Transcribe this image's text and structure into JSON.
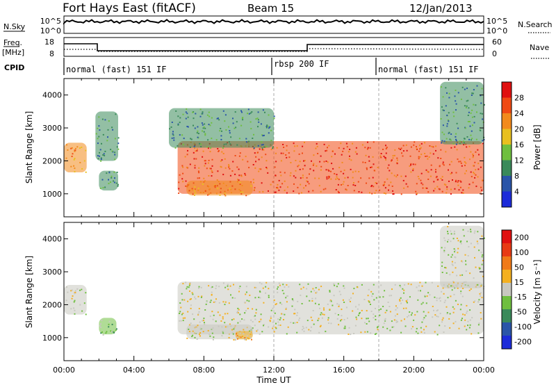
{
  "header": {
    "station": "Fort Hays East (fitACF)",
    "beam": "Beam 15",
    "date": "12/Jan/2013"
  },
  "strip_labels": {
    "nsky": "N.Sky",
    "nsky_ticks": [
      "10^5",
      "10^0"
    ],
    "nsearch": "N.Search",
    "nsearch_ticks": [
      "10^5",
      "10^0"
    ],
    "freq": "Freq.",
    "freq_unit": "[MHz]",
    "freq_ticks": [
      "18",
      "8"
    ],
    "nave": "Nave",
    "nave_ticks": [
      "60",
      "0"
    ],
    "cpid": "CPID",
    "cpid_modes": [
      {
        "label": "normal (fast) 151 IF",
        "start": 0
      },
      {
        "label": "rbsp 200 IF",
        "start": 12
      },
      {
        "label": "normal (fast) 151 IF",
        "start": 18
      }
    ]
  },
  "chart_data": [
    {
      "type": "heatmap",
      "name": "power",
      "xlabel": "",
      "ylabel": "Slant Range [km]",
      "xlim": [
        0,
        24
      ],
      "ylim": [
        300,
        4500
      ],
      "yticks": [
        1000,
        2000,
        3000,
        4000
      ],
      "ytick_labels": [
        "1000",
        "2000",
        "3000",
        "4000"
      ],
      "colorbar": {
        "label": "Power [dB]",
        "levels": [
          "4",
          "8",
          "12",
          "16",
          "20",
          "24",
          "28"
        ],
        "colors": [
          "#1c2bd9",
          "#2a55a8",
          "#3a8a5a",
          "#6fbf3f",
          "#e8c020",
          "#f28a1c",
          "#f04a14",
          "#e01010"
        ]
      },
      "regions": [
        {
          "desc": "early band",
          "x": [
            0.0,
            1.3
          ],
          "y": [
            1650,
            2550
          ],
          "level": 5
        },
        {
          "desc": "patch",
          "x": [
            1.8,
            3.1
          ],
          "y": [
            2000,
            3500
          ],
          "level": 2
        },
        {
          "desc": "small patch",
          "x": [
            2.0,
            3.1
          ],
          "y": [
            1100,
            1700
          ],
          "level": 2
        },
        {
          "desc": "main band",
          "x": [
            6.5,
            24.0
          ],
          "y": [
            1000,
            2600
          ],
          "level": 6
        },
        {
          "desc": "lower band",
          "x": [
            7.0,
            10.8
          ],
          "y": [
            950,
            1400
          ],
          "level": 5
        },
        {
          "desc": "upper diffuse",
          "x": [
            6.0,
            12.0
          ],
          "y": [
            2400,
            3600
          ],
          "level": 2
        },
        {
          "desc": "high range",
          "x": [
            21.5,
            24.0
          ],
          "y": [
            2500,
            4400
          ],
          "level": 2
        }
      ]
    },
    {
      "type": "heatmap",
      "name": "velocity",
      "xlabel": "Time UT",
      "ylabel": "Slant Range [km]",
      "xlim": [
        0,
        24
      ],
      "ylim": [
        300,
        4500
      ],
      "xticks": [
        0,
        4,
        8,
        12,
        16,
        20,
        24
      ],
      "xtick_labels": [
        "00:00",
        "04:00",
        "08:00",
        "12:00",
        "16:00",
        "20:00",
        "00:00"
      ],
      "yticks": [
        1000,
        2000,
        3000,
        4000
      ],
      "ytick_labels": [
        "1000",
        "2000",
        "3000",
        "4000"
      ],
      "colorbar": {
        "label": "Velocity [m s⁻¹]",
        "levels": [
          "200",
          "100",
          "50",
          "15",
          "-15",
          "-50",
          "-100",
          "-200"
        ],
        "colors": [
          "#1c2bd9",
          "#2a55a8",
          "#3a8a5a",
          "#6fbf3f",
          "#c8c8c0",
          "#f4b020",
          "#f07a18",
          "#e83a14",
          "#e01010"
        ]
      },
      "regions": [
        {
          "desc": "early band",
          "x": [
            0.0,
            1.3
          ],
          "y": [
            1700,
            2600
          ],
          "level": 4
        },
        {
          "desc": "green patch",
          "x": [
            2.0,
            3.0
          ],
          "y": [
            1100,
            1600
          ],
          "level": 3
        },
        {
          "desc": "main band",
          "x": [
            6.5,
            24.0
          ],
          "y": [
            1100,
            2700
          ],
          "level": 4
        },
        {
          "desc": "lower band",
          "x": [
            7.0,
            10.8
          ],
          "y": [
            950,
            1400
          ],
          "level": 4
        },
        {
          "desc": "lower band tail",
          "x": [
            9.8,
            10.8
          ],
          "y": [
            950,
            1200
          ],
          "level": 5
        },
        {
          "desc": "high range",
          "x": [
            21.5,
            24.0
          ],
          "y": [
            2500,
            4400
          ],
          "level": 4
        }
      ]
    }
  ]
}
